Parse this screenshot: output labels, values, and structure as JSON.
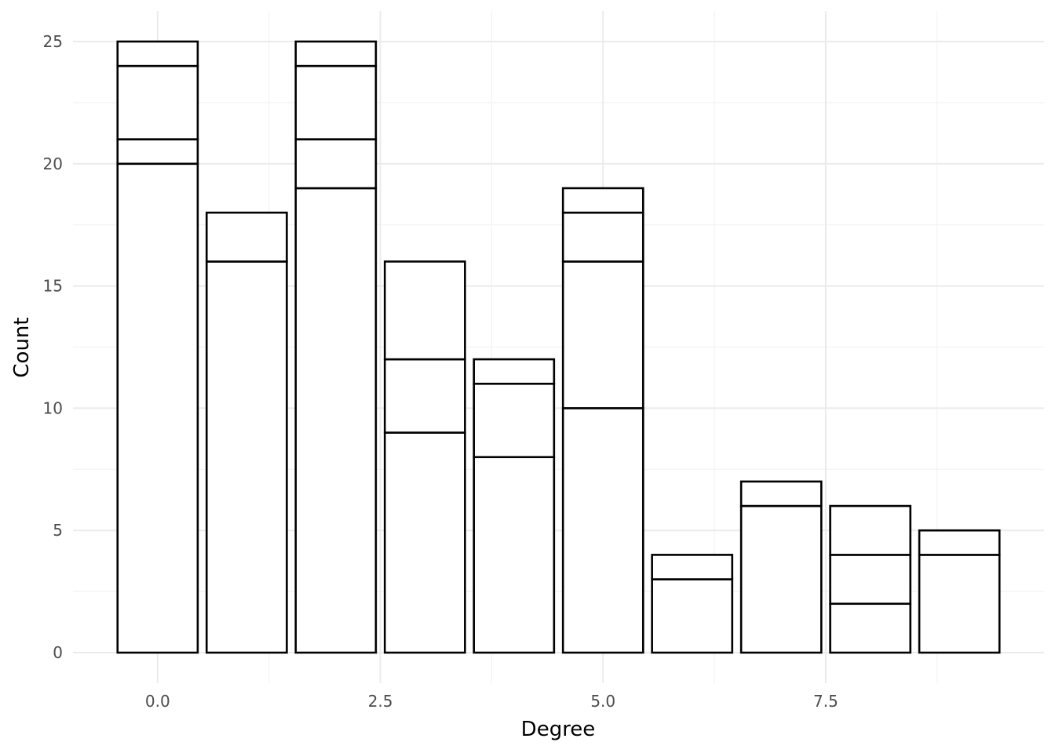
{
  "chart_data": {
    "type": "bar",
    "stacked": true,
    "xlabel": "Degree",
    "ylabel": "Count",
    "xlim": [
      -0.95,
      9.95
    ],
    "ylim": [
      -1.25,
      26.25
    ],
    "x_ticks": [
      0.0,
      2.5,
      5.0,
      7.5
    ],
    "x_tick_labels": [
      "0.0",
      "2.5",
      "5.0",
      "7.5"
    ],
    "y_ticks": [
      0,
      5,
      10,
      15,
      20,
      25
    ],
    "y_tick_labels": [
      "0",
      "5",
      "10",
      "15",
      "20",
      "25"
    ],
    "x_minor_ticks": [
      1.25,
      3.75,
      6.25,
      8.75
    ],
    "y_minor_ticks": [
      2.5,
      7.5,
      12.5,
      17.5,
      22.5
    ],
    "bar_width": 0.9,
    "grid": true,
    "fill_color": "#ffffff",
    "stroke_color": "#000000",
    "bars": [
      {
        "x": 0,
        "segments": [
          20,
          1,
          3,
          1
        ],
        "total": 25
      },
      {
        "x": 1,
        "segments": [
          16,
          2
        ],
        "total": 18
      },
      {
        "x": 2,
        "segments": [
          19,
          2,
          3,
          1
        ],
        "total": 25
      },
      {
        "x": 3,
        "segments": [
          9,
          3,
          4
        ],
        "total": 16
      },
      {
        "x": 4,
        "segments": [
          8,
          3,
          1
        ],
        "total": 12
      },
      {
        "x": 5,
        "segments": [
          10,
          6,
          2,
          1
        ],
        "total": 19
      },
      {
        "x": 6,
        "segments": [
          3,
          1
        ],
        "total": 4
      },
      {
        "x": 7,
        "segments": [
          6,
          1
        ],
        "total": 7
      },
      {
        "x": 8,
        "segments": [
          2,
          2,
          2
        ],
        "total": 6
      },
      {
        "x": 9,
        "segments": [
          4,
          1
        ],
        "total": 5
      }
    ]
  }
}
